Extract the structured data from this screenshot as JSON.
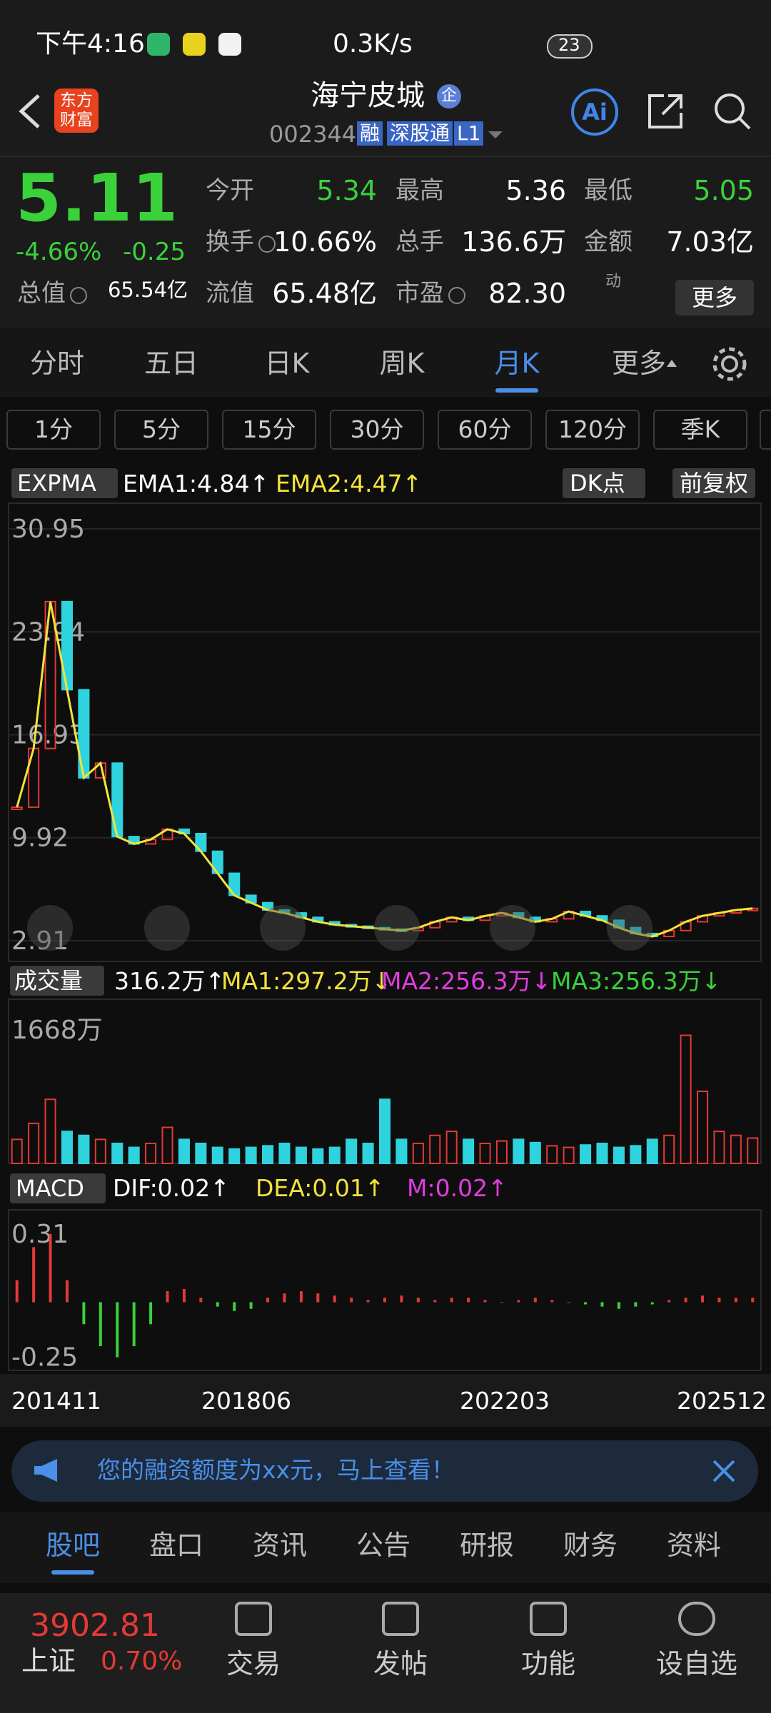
{
  "status_bar": {
    "time": "下午4:16",
    "speed": "0.3K/s",
    "battery": "23"
  },
  "header": {
    "logo": [
      "东方",
      "财富"
    ],
    "title": "海宁皮城",
    "badge": "企",
    "code": "002344",
    "tags": [
      "融",
      "深股通",
      "L1"
    ],
    "ai": "Ai"
  },
  "quote": {
    "price": "5.11",
    "change_pct": "-4.66%",
    "change": "-0.25",
    "fields": [
      {
        "label": "今开",
        "value": "5.34",
        "color": "#3ad13a"
      },
      {
        "label": "最高",
        "value": "5.36",
        "color": "#ffffff"
      },
      {
        "label": "最低",
        "value": "5.05",
        "color": "#3ad13a"
      },
      {
        "label": "换手",
        "value": "10.66%",
        "color": "#ffffff"
      },
      {
        "label": "总手",
        "value": "136.6万",
        "color": "#ffffff"
      },
      {
        "label": "金额",
        "value": "7.03亿",
        "color": "#ffffff"
      },
      {
        "label": "总值",
        "value": "65.54亿",
        "color": "#ffffff"
      },
      {
        "label": "流值",
        "value": "65.48亿",
        "color": "#ffffff"
      },
      {
        "label": "市盈",
        "value": "82.30",
        "color": "#ffffff"
      }
    ],
    "pe_note": "动",
    "more": "更多"
  },
  "tabs": {
    "items": [
      "分时",
      "五日",
      "日K",
      "周K",
      "月K",
      "更多"
    ],
    "active": 4
  },
  "periods": [
    "1分",
    "5分",
    "15分",
    "30分",
    "60分",
    "120分",
    "季K"
  ],
  "indicator": {
    "name": "EXPMA",
    "ema1": "EMA1:4.84↑",
    "ema2": "EMA2:4.47↑",
    "dk": "DK点",
    "adjust": "前复权"
  },
  "volume_header": {
    "name": "成交量",
    "vol": "316.2万↑",
    "ma1": "MA1:297.2万↓",
    "ma2": "MA2:256.3万↓",
    "ma3": "MA3:256.3万↓"
  },
  "macd_header": {
    "name": "MACD",
    "dif": "DIF:0.02↑",
    "dea": "DEA:0.01↑",
    "m": "M:0.02↑"
  },
  "chart_data": [
    {
      "type": "candlestick",
      "ylim": [
        1.5,
        32.7
      ],
      "yticks": [
        30.95,
        23.94,
        16.93,
        9.92,
        2.91
      ],
      "grid": true,
      "values": [
        12,
        16,
        26,
        20,
        14,
        15,
        10,
        9.5,
        9.8,
        10.5,
        10.2,
        9,
        7.5,
        6,
        5.5,
        5,
        4.8,
        4.5,
        4.2,
        4,
        3.9,
        3.8,
        3.7,
        3.6,
        3.8,
        4.2,
        4.5,
        4.3,
        4.6,
        4.8,
        4.5,
        4.2,
        4.4,
        4.9,
        4.6,
        4.3,
        3.8,
        3.4,
        3.2,
        3.6,
        4.2,
        4.6,
        4.8,
        5.0,
        5.11
      ]
    },
    {
      "type": "bar",
      "ylim": [
        0,
        2050
      ],
      "yticks": [
        {
          "value": 1668,
          "label": "1668万"
        }
      ],
      "values": [
        300,
        500,
        800,
        400,
        350,
        300,
        250,
        200,
        250,
        450,
        300,
        250,
        200,
        180,
        200,
        220,
        250,
        200,
        180,
        200,
        300,
        250,
        800,
        300,
        250,
        350,
        400,
        300,
        250,
        280,
        300,
        260,
        220,
        200,
        230,
        250,
        200,
        220,
        300,
        350,
        1600,
        900,
        400,
        350,
        316.2
      ]
    },
    {
      "type": "bar",
      "ylim": [
        -0.31,
        0.42
      ],
      "yticks": [
        0.31,
        -0.25
      ],
      "values": [
        0.1,
        0.25,
        0.31,
        0.1,
        -0.1,
        -0.2,
        -0.25,
        -0.2,
        -0.1,
        0.05,
        0.06,
        0.02,
        -0.02,
        -0.04,
        -0.03,
        0.02,
        0.04,
        0.05,
        0.04,
        0.03,
        0.02,
        0.01,
        0.02,
        0.03,
        0.02,
        0.01,
        0.02,
        0.02,
        0.01,
        0.0,
        0.01,
        0.02,
        0.01,
        0.0,
        -0.01,
        -0.02,
        -0.03,
        -0.02,
        -0.01,
        0.01,
        0.02,
        0.03,
        0.02,
        0.02,
        0.02
      ]
    }
  ],
  "date_labels": [
    "201411",
    "201806",
    "202203",
    "202512"
  ],
  "banner": "您的融资额度为xx元，马上查看！",
  "bottom_tabs": {
    "items": [
      "股吧",
      "盘口",
      "资讯",
      "公告",
      "研报",
      "财务",
      "资料"
    ],
    "active": 0
  },
  "footer": {
    "index_value": "3902.81",
    "index_name": "上证",
    "index_change": "0.70%",
    "actions": [
      "交易",
      "发帖",
      "功能",
      "设自选"
    ]
  }
}
